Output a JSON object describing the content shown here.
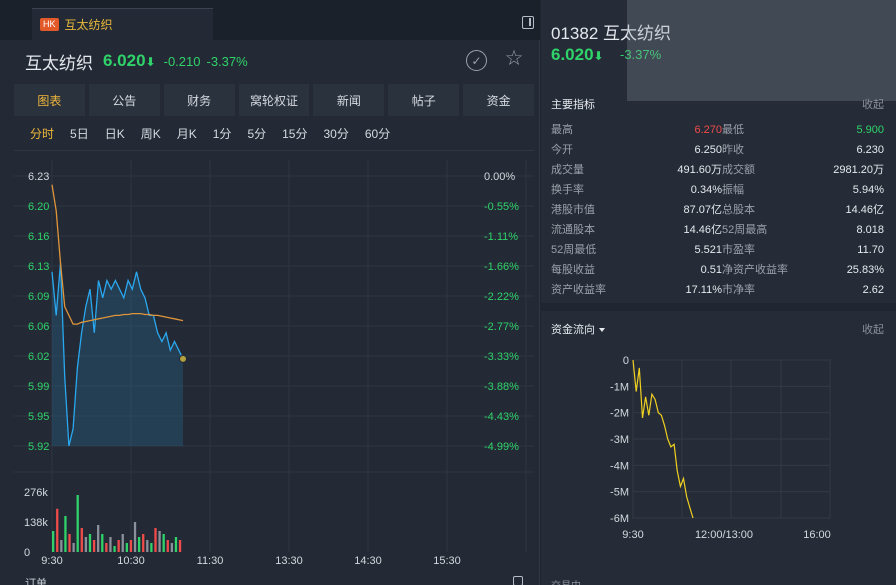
{
  "tab": {
    "badge": "HK",
    "title": "互太纺织"
  },
  "header": {
    "name": "互太纺织",
    "price": "6.020",
    "arrow": "⬇",
    "change": "-0.210",
    "change_pct": "-3.37%"
  },
  "nav": [
    "图表",
    "公告",
    "财务",
    "窝轮权证",
    "新闻",
    "帖子",
    "资金"
  ],
  "periods": [
    "分时",
    "5日",
    "日K",
    "周K",
    "月K",
    "1分",
    "5分",
    "15分",
    "30分",
    "60分"
  ],
  "chart_data": [
    {
      "type": "line",
      "title": "",
      "y_ticks": [
        "6.23",
        "6.20",
        "6.16",
        "6.13",
        "6.09",
        "6.06",
        "6.02",
        "5.99",
        "5.95",
        "5.92"
      ],
      "pct_ticks": [
        "0.00%",
        "-0.55%",
        "-1.11%",
        "-1.66%",
        "-2.22%",
        "-2.77%",
        "-3.33%",
        "-3.88%",
        "-4.43%",
        "-4.99%"
      ],
      "vol_ticks": [
        "276k",
        "138k",
        "0"
      ],
      "x_ticks": [
        "9:30",
        "10:30",
        "11:30",
        "13:30",
        "14:30",
        "15:30"
      ],
      "ylim": [
        5.92,
        6.23
      ],
      "series": [
        {
          "values": [
            6.12,
            6.07,
            6.13,
            6.0,
            5.92,
            5.94,
            6.01,
            6.05,
            6.08,
            6.1,
            6.05,
            6.11,
            6.09,
            6.11,
            6.1,
            6.11,
            6.1,
            6.09,
            6.11,
            6.1,
            6.12,
            6.1,
            6.09,
            6.07,
            6.07,
            6.05,
            6.04,
            6.05,
            6.03,
            6.04,
            6.03,
            6.02
          ]
        },
        {
          "values": [
            6.22,
            6.19,
            6.13,
            6.08,
            6.07,
            6.06,
            6.06,
            6.062,
            6.063,
            6.064,
            6.065,
            6.066,
            6.067,
            6.068,
            6.069,
            6.07,
            6.07,
            6.071,
            6.071,
            6.072,
            6.072,
            6.072,
            6.071,
            6.071,
            6.07,
            6.07,
            6.069,
            6.068,
            6.067,
            6.066,
            6.065,
            6.064
          ]
        }
      ],
      "volumes": [
        0.35,
        0.72,
        0.2,
        0.6,
        0.3,
        0.15,
        0.95,
        0.4,
        0.25,
        0.3,
        0.2,
        0.45,
        0.3,
        0.15,
        0.25,
        0.1,
        0.2,
        0.3,
        0.15,
        0.2,
        0.5,
        0.25,
        0.3,
        0.2,
        0.15,
        0.4,
        0.35,
        0.3,
        0.2,
        0.15,
        0.25,
        0.2
      ]
    },
    {
      "type": "line",
      "title": "",
      "y_ticks": [
        "0",
        "-1M",
        "-2M",
        "-3M",
        "-4M",
        "-5M",
        "-6M"
      ],
      "x_ticks": [
        "9:30",
        "12:00/13:00",
        "16:00"
      ],
      "ylim": [
        -6,
        0
      ],
      "values": [
        0,
        -1.2,
        -0.3,
        -2.2,
        -1.4,
        -2.1,
        -1.3,
        -1.5,
        -2.0,
        -2.1,
        -2.5,
        -3.0,
        -3.3,
        -3.2,
        -4.2,
        -4.8,
        -4.5,
        -5.2,
        -5.6,
        -6.0
      ]
    }
  ],
  "right": {
    "code": "01382",
    "name": "互太纺织",
    "price": "6.020",
    "arrow": "⬇",
    "pct": "-3.37%",
    "metrics_title": "主要指标",
    "fold": "收起",
    "metrics": [
      {
        "l1": "最高",
        "v1": "6.270",
        "l2": "最低",
        "v2": "5.900"
      },
      {
        "l1": "今开",
        "v1": "6.250",
        "l2": "昨收",
        "v2": "6.230"
      },
      {
        "l1": "成交量",
        "v1": "491.60万",
        "l2": "成交额",
        "v2": "2981.20万"
      },
      {
        "l1": "换手率",
        "v1": "0.34%",
        "l2": "振幅",
        "v2": "5.94%"
      },
      {
        "l1": "港股市值",
        "v1": "87.07亿",
        "l2": "总股本",
        "v2": "14.46亿"
      },
      {
        "l1": "流通股本",
        "v1": "14.46亿",
        "l2": "52周最高",
        "v2": "8.018"
      },
      {
        "l1": "52周最低",
        "v1": "5.521",
        "l2": "市盈率",
        "v2": "11.70"
      },
      {
        "l1": "每股收益",
        "v1": "0.51",
        "l2": "净资产收益率",
        "v2": "25.83%"
      },
      {
        "l1": "资产收益率",
        "v1": "17.11%",
        "l2": "市净率",
        "v2": "2.62"
      }
    ],
    "flow_title": "资金流向",
    "flow_fold": "收起",
    "bottom_label": "交易中"
  },
  "bottom": {
    "label": "订单"
  },
  "colors": {
    "up": "#f04b4b",
    "down": "#2fd36a",
    "price_line": "#29a8f0",
    "avg_line": "#e0953a",
    "flow_line": "#f0d020",
    "active": "#f0b83a"
  }
}
